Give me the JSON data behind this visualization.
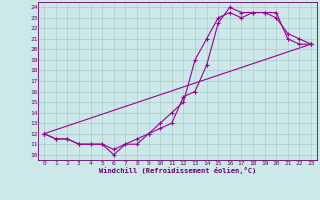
{
  "xlabel": "Windchill (Refroidissement éolien,°C)",
  "bg_color": "#cce8e8",
  "line_color": "#990099",
  "grid_color": "#aacccc",
  "text_color": "#660066",
  "xlim": [
    -0.5,
    23.5
  ],
  "ylim": [
    9.5,
    24.5
  ],
  "xticks": [
    0,
    1,
    2,
    3,
    4,
    5,
    6,
    7,
    8,
    9,
    10,
    11,
    12,
    13,
    14,
    15,
    16,
    17,
    18,
    19,
    20,
    21,
    22,
    23
  ],
  "yticks": [
    10,
    11,
    12,
    13,
    14,
    15,
    16,
    17,
    18,
    19,
    20,
    21,
    22,
    23,
    24
  ],
  "line1_x": [
    0,
    1,
    2,
    3,
    4,
    5,
    6,
    7,
    8,
    9,
    10,
    11,
    12,
    13,
    14,
    15,
    16,
    17,
    18,
    19,
    20,
    21,
    22,
    23
  ],
  "line1_y": [
    12.0,
    11.5,
    11.5,
    11.0,
    11.0,
    11.0,
    10.0,
    11.0,
    11.0,
    12.0,
    12.5,
    13.0,
    15.5,
    16.0,
    18.5,
    22.5,
    24.0,
    23.5,
    23.5,
    23.5,
    23.5,
    21.0,
    20.5,
    20.5
  ],
  "line2_x": [
    0,
    1,
    2,
    3,
    4,
    5,
    6,
    7,
    8,
    9,
    10,
    11,
    12,
    13,
    14,
    15,
    16,
    17,
    18,
    19,
    20,
    21,
    22,
    23
  ],
  "line2_y": [
    12.0,
    11.5,
    11.5,
    11.0,
    11.0,
    11.0,
    10.5,
    11.0,
    11.5,
    12.0,
    13.0,
    14.0,
    15.0,
    19.0,
    21.0,
    23.0,
    23.5,
    23.0,
    23.5,
    23.5,
    23.0,
    21.5,
    21.0,
    20.5
  ],
  "line3_x": [
    0,
    23
  ],
  "line3_y": [
    12.0,
    20.5
  ]
}
